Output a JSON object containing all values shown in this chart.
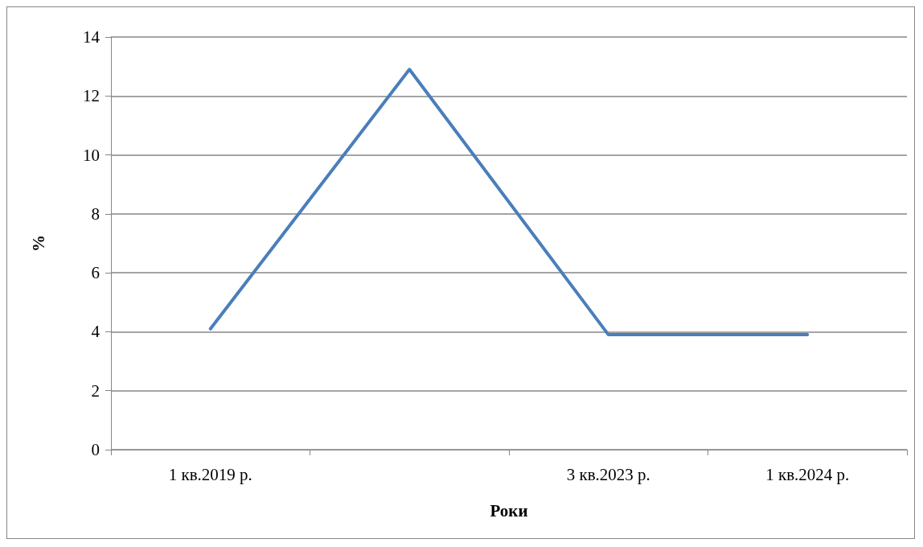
{
  "chart_data": {
    "type": "line",
    "xlabel": "Роки",
    "ylabel": "%",
    "categories": [
      "1 кв.2019 р.",
      null,
      "3 кв.2023 р.",
      "1 кв.2024 р."
    ],
    "series": [
      {
        "color": "#4a7ebb",
        "values": [
          4.1,
          12.9,
          3.9,
          3.9
        ]
      }
    ],
    "ylim": [
      0,
      14
    ],
    "yticks": [
      0,
      2,
      4,
      6,
      8,
      10,
      12,
      14
    ],
    "grid": "y",
    "marker": "none",
    "line_style": "solid"
  }
}
